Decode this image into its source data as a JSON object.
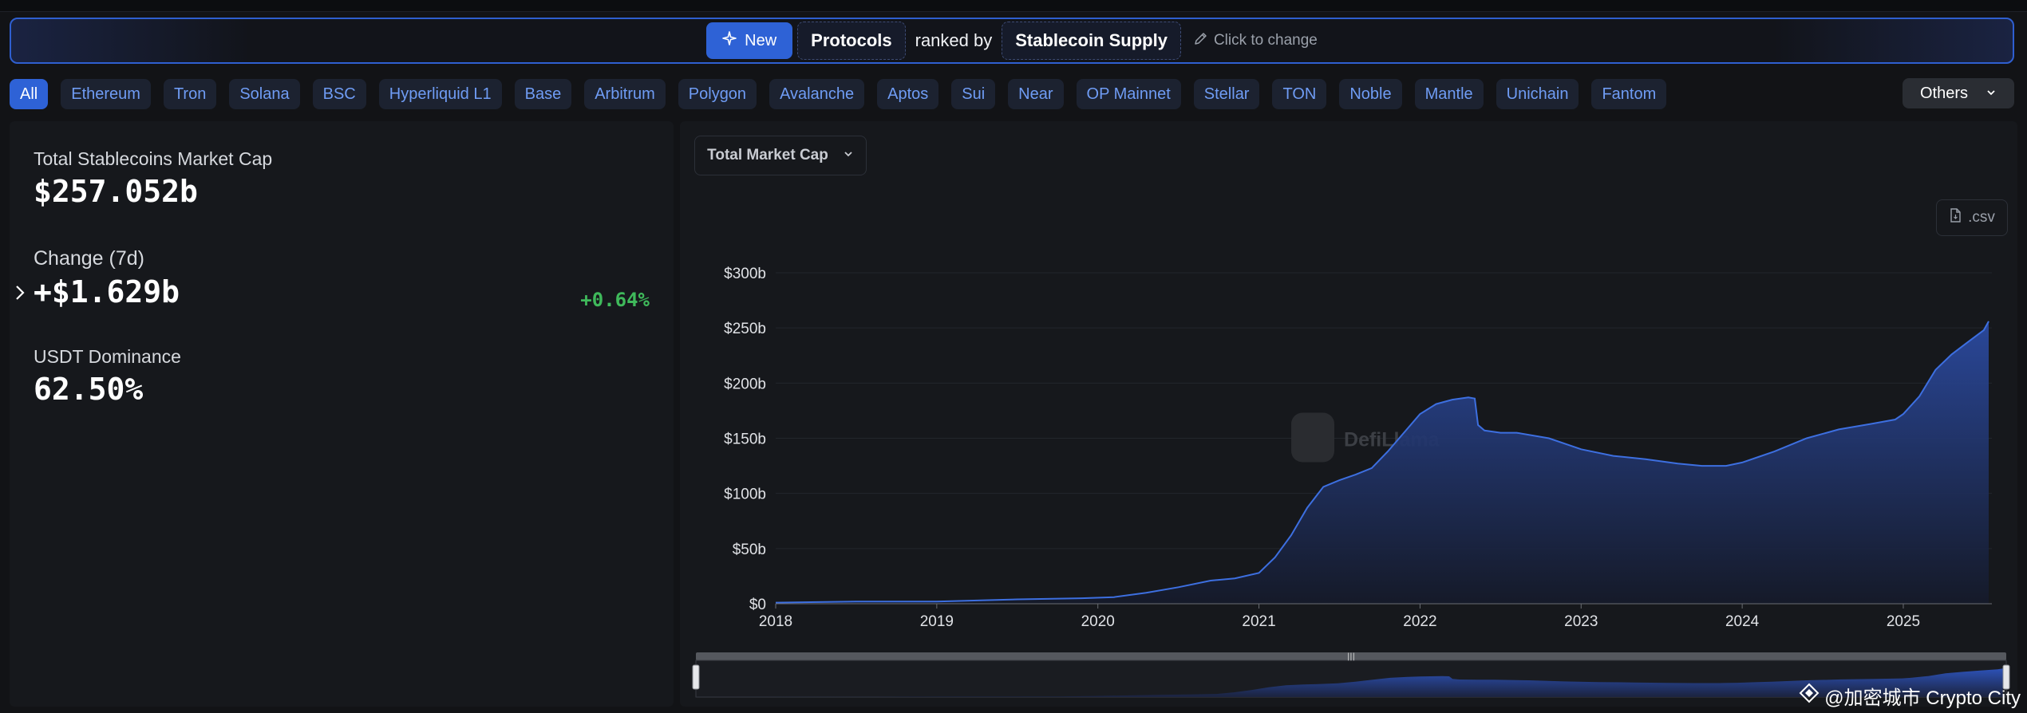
{
  "banner": {
    "new_label": "New",
    "protocols_label": "Protocols",
    "ranked_by": "ranked by",
    "metric_label": "Stablecoin Supply",
    "change_hint": "Click to change"
  },
  "chains": [
    "All",
    "Ethereum",
    "Tron",
    "Solana",
    "BSC",
    "Hyperliquid L1",
    "Base",
    "Arbitrum",
    "Polygon",
    "Avalanche",
    "Aptos",
    "Sui",
    "Near",
    "OP Mainnet",
    "Stellar",
    "TON",
    "Noble",
    "Mantle",
    "Unichain",
    "Fantom"
  ],
  "chains_active": "All",
  "others_label": "Others",
  "stats": {
    "market_cap_label": "Total Stablecoins Market Cap",
    "market_cap_value": "$257.052b",
    "change_label": "Change (7d)",
    "change_value": "+$1.629b",
    "change_pct": "+0.64%",
    "dominance_label": "USDT Dominance",
    "dominance_value": "62.50%"
  },
  "chart_controls": {
    "dropdown_label": "Total Market Cap",
    "csv_label": ".csv",
    "logo_text": "DefiLlama"
  },
  "colors": {
    "accent": "#2e62d6",
    "positive": "#3fb95b",
    "line": "#3d6fe0"
  },
  "chart_data": {
    "type": "area",
    "title": "Total Market Cap",
    "xlabel": "",
    "ylabel": "",
    "xlim": [
      2018.0,
      2025.55
    ],
    "ylim": [
      0,
      300
    ],
    "y_ticks": [
      0,
      50,
      100,
      150,
      200,
      250,
      300
    ],
    "y_tick_labels": [
      "$0",
      "$50b",
      "$100b",
      "$150b",
      "$200b",
      "$250b",
      "$300b"
    ],
    "x_ticks": [
      2018,
      2019,
      2020,
      2021,
      2022,
      2023,
      2024,
      2025
    ],
    "x_tick_labels": [
      "2018",
      "2019",
      "2020",
      "2021",
      "2022",
      "2023",
      "2024",
      "2025"
    ],
    "series": [
      {
        "name": "Total Stablecoins Market Cap ($b)",
        "x": [
          2018.0,
          2018.5,
          2019.0,
          2019.5,
          2019.9,
          2020.1,
          2020.3,
          2020.5,
          2020.7,
          2020.85,
          2021.0,
          2021.1,
          2021.2,
          2021.3,
          2021.4,
          2021.5,
          2021.6,
          2021.7,
          2021.8,
          2021.9,
          2022.0,
          2022.1,
          2022.2,
          2022.3,
          2022.34,
          2022.36,
          2022.4,
          2022.5,
          2022.6,
          2022.8,
          2023.0,
          2023.2,
          2023.4,
          2023.6,
          2023.75,
          2023.9,
          2024.0,
          2024.1,
          2024.2,
          2024.4,
          2024.6,
          2024.8,
          2024.95,
          2025.0,
          2025.1,
          2025.2,
          2025.3,
          2025.4,
          2025.5,
          2025.53
        ],
        "values": [
          1,
          2,
          2,
          4,
          5,
          6,
          10,
          15,
          21,
          23,
          28,
          42,
          62,
          87,
          106,
          112,
          117,
          123,
          138,
          155,
          172,
          181,
          185,
          187,
          186,
          162,
          157,
          155,
          155,
          150,
          140,
          134,
          131,
          127,
          125,
          125,
          128,
          133,
          138,
          150,
          158,
          163,
          167,
          172,
          188,
          212,
          226,
          237,
          248,
          256
        ]
      }
    ]
  },
  "watermark": "@加密城市 Crypto City"
}
